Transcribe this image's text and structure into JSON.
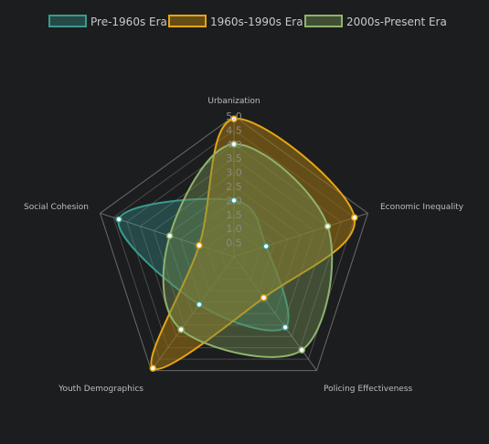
{
  "chart_data": {
    "type": "radar",
    "axes": [
      "Urbanization",
      "Economic Inequality",
      "Policing Effectiveness",
      "Youth Demographics",
      "Social Cohesion"
    ],
    "r_range": [
      0,
      5
    ],
    "ticks": [
      "0.5",
      "1.0",
      "1.5",
      "2.0",
      "2.5",
      "3.0",
      "3.5",
      "4.0",
      "4.5",
      "5.0"
    ],
    "grid": true,
    "legend_position": "top",
    "series": [
      {
        "name": "Pre-1960s Era",
        "values": [
          2.0,
          1.2,
          3.1,
          2.1,
          4.3
        ],
        "color": "#3a9a8f",
        "fill": "rgba(58,154,143,0.35)"
      },
      {
        "name": "1960s-1990s Era",
        "values": [
          4.9,
          4.5,
          1.8,
          4.9,
          1.3
        ],
        "color": "#e6a512",
        "fill": "rgba(150,110,20,0.60)"
      },
      {
        "name": "2000s-Present Era",
        "values": [
          4.0,
          3.5,
          4.1,
          3.2,
          2.4
        ],
        "color": "#8fb36d",
        "fill": "rgba(110,140,80,0.45)"
      }
    ]
  }
}
